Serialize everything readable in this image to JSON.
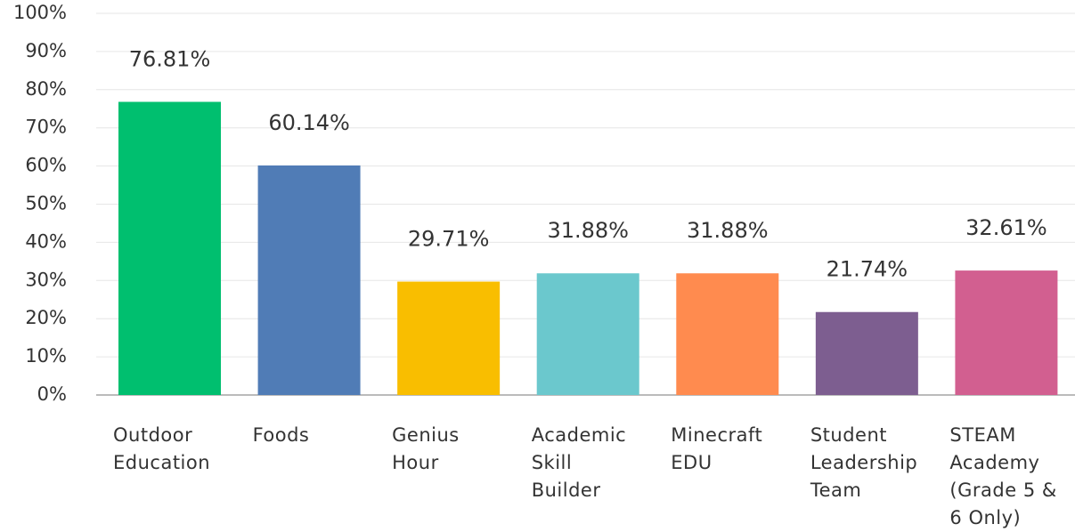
{
  "chart_data": {
    "type": "bar",
    "categories": [
      "Outdoor Education",
      "Foods",
      "Genius Hour",
      "Academic Skill Builder",
      "Minecraft EDU",
      "Student Leadership Team",
      "STEAM Academy (Grade 5 & 6 Only)"
    ],
    "values": [
      76.81,
      60.14,
      29.71,
      31.88,
      31.88,
      21.74,
      32.61
    ],
    "value_labels": [
      "76.81%",
      "60.14%",
      "29.71%",
      "31.88%",
      "31.88%",
      "21.74%",
      "32.61%"
    ],
    "colors": [
      "#00bf6f",
      "#507cb6",
      "#f9be00",
      "#6bc8cd",
      "#ff8b4f",
      "#7d5e90",
      "#d25f90"
    ],
    "ylim": [
      0,
      100
    ],
    "yticks": [
      {
        "value": 0,
        "label": "0%"
      },
      {
        "value": 10,
        "label": "10%"
      },
      {
        "value": 20,
        "label": "20%"
      },
      {
        "value": 30,
        "label": "30%"
      },
      {
        "value": 40,
        "label": "40%"
      },
      {
        "value": 50,
        "label": "50%"
      },
      {
        "value": 60,
        "label": "60%"
      },
      {
        "value": 70,
        "label": "70%"
      },
      {
        "value": 80,
        "label": "80%"
      },
      {
        "value": 90,
        "label": "90%"
      },
      {
        "value": 100,
        "label": "100%"
      }
    ],
    "grid": true
  }
}
